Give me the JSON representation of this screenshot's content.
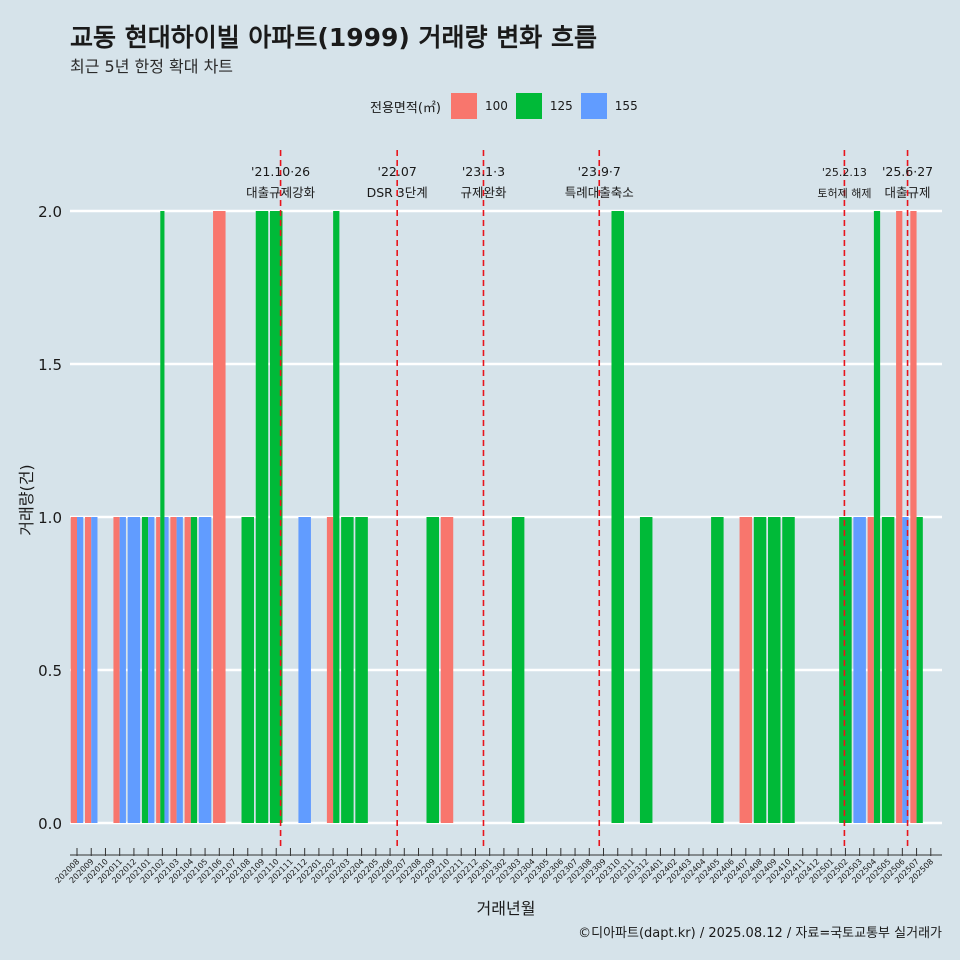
{
  "header": {
    "title": "교동 현대하이빌 아파트(1999) 거래량 변화 흐름",
    "subtitle": "최근 5년 한정 확대 차트"
  },
  "legend": {
    "title": "전용면적(㎡)",
    "items": [
      {
        "label": "100",
        "color": "#f8766d"
      },
      {
        "label": "125",
        "color": "#00ba38"
      },
      {
        "label": "155",
        "color": "#619cff"
      }
    ]
  },
  "caption": "©디아파트(dapt.kr) / 2025.08.12 / 자료=국토교통부 실거래가",
  "chart_data": {
    "type": "bar",
    "xlabel": "거래년월",
    "ylabel": "거래량(건)",
    "ylim": [
      0,
      2
    ],
    "yticks": [
      "0.0",
      "0.5",
      "1.0",
      "1.5",
      "2.0"
    ],
    "categories": [
      "202008",
      "202009",
      "202010",
      "202011",
      "202012",
      "202101",
      "202102",
      "202103",
      "202104",
      "202105",
      "202106",
      "202107",
      "202108",
      "202109",
      "202110",
      "202111",
      "202112",
      "202201",
      "202202",
      "202203",
      "202204",
      "202205",
      "202206",
      "202207",
      "202208",
      "202209",
      "202210",
      "202211",
      "202212",
      "202301",
      "202302",
      "202303",
      "202304",
      "202305",
      "202306",
      "202307",
      "202308",
      "202309",
      "202310",
      "202311",
      "202312",
      "202401",
      "202402",
      "202403",
      "202404",
      "202405",
      "202406",
      "202407",
      "202408",
      "202409",
      "202410",
      "202411",
      "202412",
      "202501",
      "202502",
      "202503",
      "202504",
      "202505",
      "202506",
      "202507",
      "202508"
    ],
    "bars": [
      {
        "month": "202008",
        "segments": [
          {
            "area": "100",
            "value": 1
          },
          {
            "area": "155",
            "value": 1
          }
        ]
      },
      {
        "month": "202009",
        "segments": [
          {
            "area": "100",
            "value": 1
          },
          {
            "area": "155",
            "value": 1
          }
        ]
      },
      {
        "month": "202011",
        "segments": [
          {
            "area": "100",
            "value": 1
          },
          {
            "area": "155",
            "value": 1
          }
        ]
      },
      {
        "month": "202012",
        "segments": [
          {
            "area": "155",
            "value": 1
          }
        ]
      },
      {
        "month": "202101",
        "segments": [
          {
            "area": "125",
            "value": 1
          },
          {
            "area": "155",
            "value": 1
          }
        ]
      },
      {
        "month": "202102",
        "segments": [
          {
            "area": "100",
            "value": 1
          },
          {
            "area": "125",
            "value": 2
          },
          {
            "area": "155",
            "value": 1
          }
        ]
      },
      {
        "month": "202103",
        "segments": [
          {
            "area": "100",
            "value": 1
          },
          {
            "area": "155",
            "value": 1
          }
        ]
      },
      {
        "month": "202104",
        "segments": [
          {
            "area": "100",
            "value": 1
          },
          {
            "area": "125",
            "value": 1
          }
        ]
      },
      {
        "month": "202105",
        "segments": [
          {
            "area": "155",
            "value": 1
          }
        ]
      },
      {
        "month": "202106",
        "segments": [
          {
            "area": "100",
            "value": 2
          }
        ]
      },
      {
        "month": "202108",
        "segments": [
          {
            "area": "125",
            "value": 1
          }
        ]
      },
      {
        "month": "202109",
        "segments": [
          {
            "area": "125",
            "value": 2
          }
        ]
      },
      {
        "month": "202110",
        "segments": [
          {
            "area": "125",
            "value": 2
          }
        ]
      },
      {
        "month": "202112",
        "segments": [
          {
            "area": "155",
            "value": 1
          }
        ]
      },
      {
        "month": "202202",
        "segments": [
          {
            "area": "100",
            "value": 1
          },
          {
            "area": "125",
            "value": 2
          }
        ]
      },
      {
        "month": "202203",
        "segments": [
          {
            "area": "125",
            "value": 1
          }
        ]
      },
      {
        "month": "202204",
        "segments": [
          {
            "area": "125",
            "value": 1
          }
        ]
      },
      {
        "month": "202209",
        "segments": [
          {
            "area": "125",
            "value": 1
          }
        ]
      },
      {
        "month": "202210",
        "segments": [
          {
            "area": "100",
            "value": 1
          }
        ]
      },
      {
        "month": "202303",
        "segments": [
          {
            "area": "125",
            "value": 1
          }
        ]
      },
      {
        "month": "202310",
        "segments": [
          {
            "area": "125",
            "value": 2
          }
        ]
      },
      {
        "month": "202312",
        "segments": [
          {
            "area": "125",
            "value": 1
          }
        ]
      },
      {
        "month": "202405",
        "segments": [
          {
            "area": "125",
            "value": 1
          }
        ]
      },
      {
        "month": "202407",
        "segments": [
          {
            "area": "100",
            "value": 1
          }
        ]
      },
      {
        "month": "202408",
        "segments": [
          {
            "area": "125",
            "value": 1
          }
        ]
      },
      {
        "month": "202409",
        "segments": [
          {
            "area": "125",
            "value": 1
          }
        ]
      },
      {
        "month": "202410",
        "segments": [
          {
            "area": "125",
            "value": 1
          }
        ]
      },
      {
        "month": "202502",
        "segments": [
          {
            "area": "125",
            "value": 1
          }
        ]
      },
      {
        "month": "202503",
        "segments": [
          {
            "area": "155",
            "value": 1
          }
        ]
      },
      {
        "month": "202504",
        "segments": [
          {
            "area": "100",
            "value": 1
          },
          {
            "area": "125",
            "value": 2
          }
        ]
      },
      {
        "month": "202505",
        "segments": [
          {
            "area": "125",
            "value": 1
          }
        ]
      },
      {
        "month": "202506",
        "segments": [
          {
            "area": "100",
            "value": 2
          },
          {
            "area": "155",
            "value": 1
          }
        ]
      },
      {
        "month": "202507",
        "segments": [
          {
            "area": "100",
            "value": 2
          },
          {
            "area": "125",
            "value": 1
          }
        ]
      }
    ],
    "annotations": [
      {
        "date": "2021-10-26",
        "line1": "'21.10·26",
        "line2": "대출규제강화"
      },
      {
        "date": "2022-07-01",
        "line1": "'22.07",
        "line2": "DSR 3단계"
      },
      {
        "date": "2023-01-03",
        "line1": "'23.1·3",
        "line2": "규제완화"
      },
      {
        "date": "2023-09-07",
        "line1": "'23.9·7",
        "line2": "특례대출축소"
      },
      {
        "date": "2025-02-13",
        "line1": "'25.2.13",
        "line2": "토허제 해제"
      },
      {
        "date": "2025-06-27",
        "line1": "'25.6·27",
        "line2": "대출규제"
      }
    ],
    "grid": "horizontal",
    "legend_position": "top"
  }
}
